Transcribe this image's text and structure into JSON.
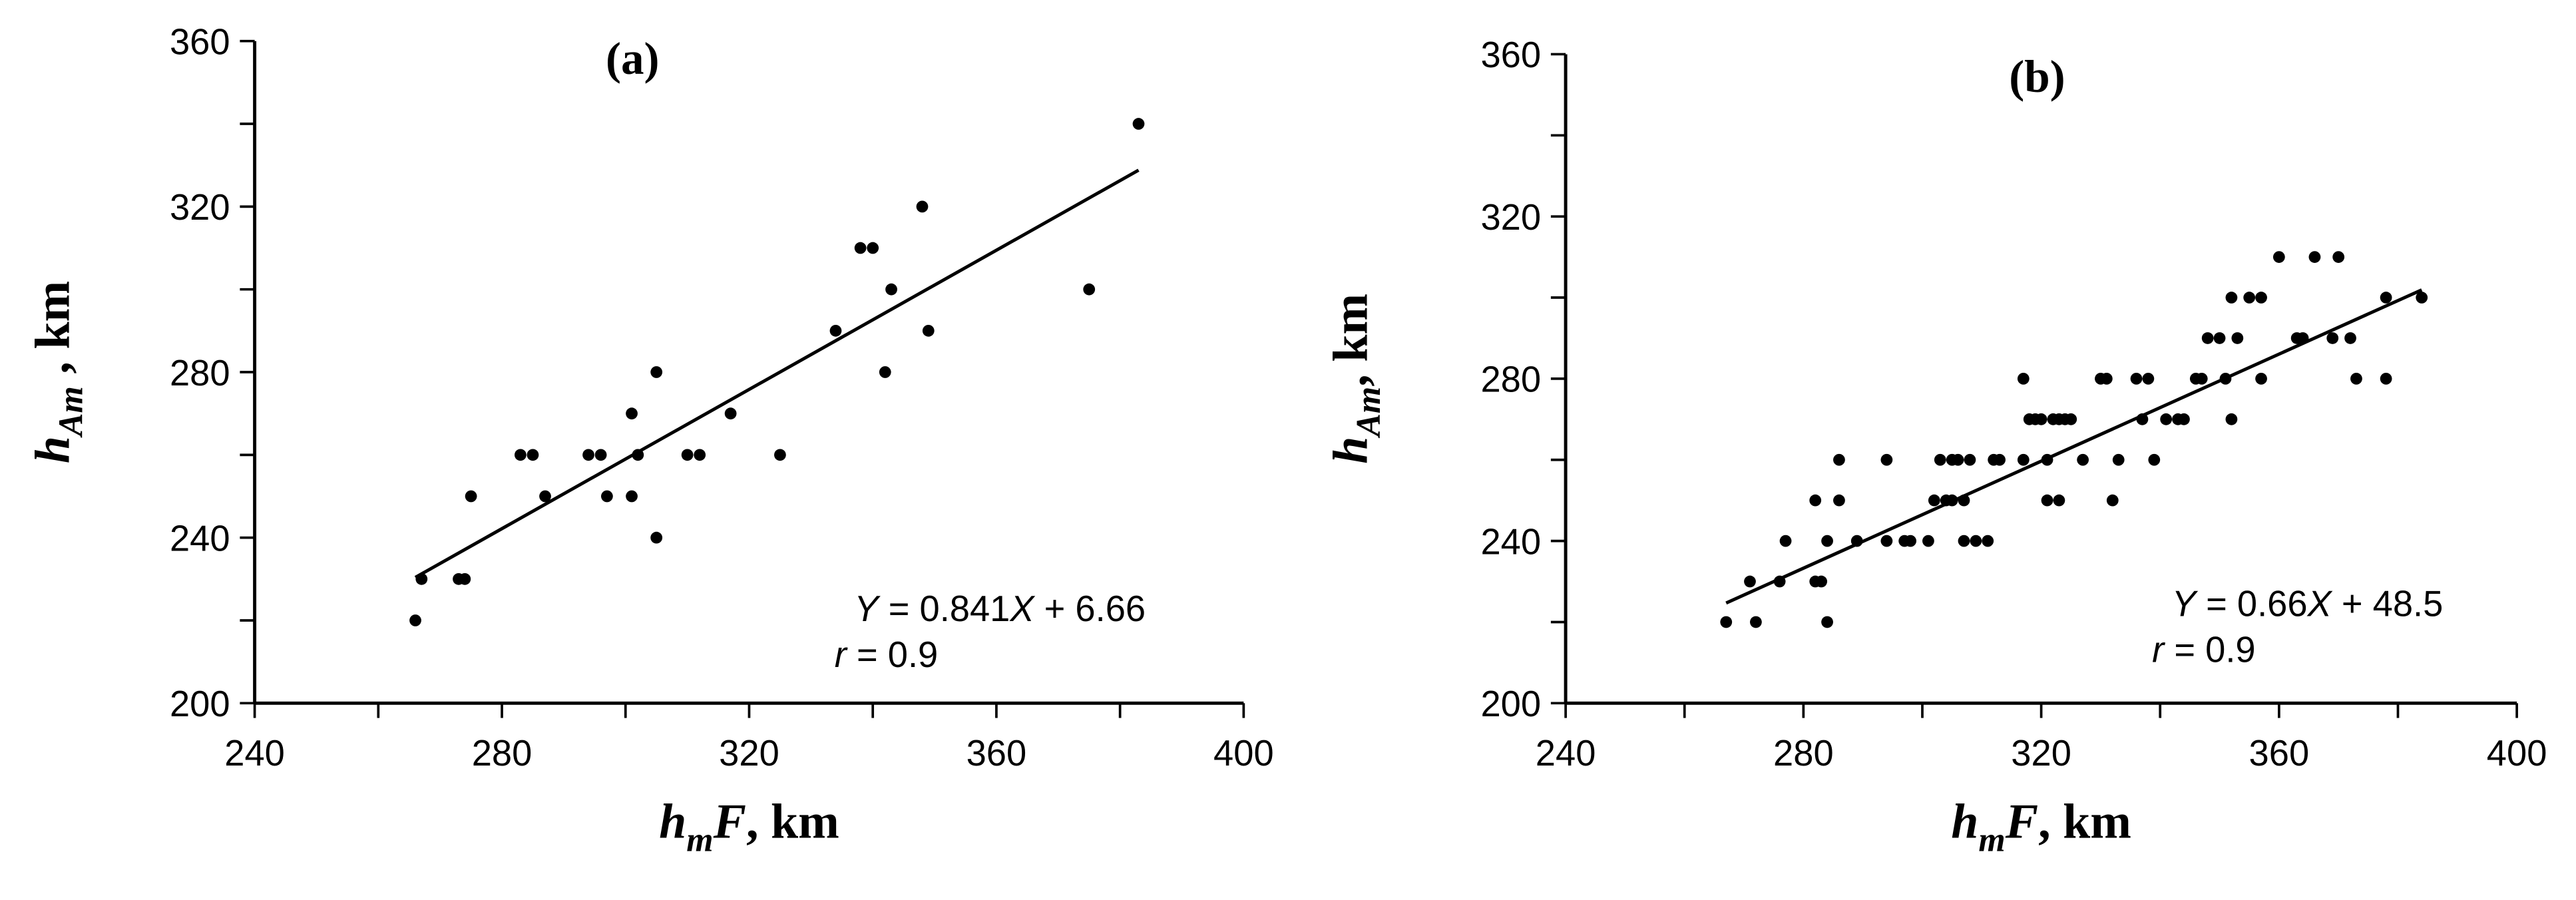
{
  "chart_data": [
    {
      "type": "scatter",
      "title": "(a)",
      "color": "#000000",
      "xlabel": [
        "h",
        "m",
        "F",
        ", km"
      ],
      "ylabel": [
        "h",
        "Am",
        " , km"
      ],
      "equation": [
        "Y",
        " = 0.841",
        "X",
        " + 6.66"
      ],
      "correlation": [
        "r",
        " = 0.9"
      ],
      "x": [
        266,
        267,
        273,
        274,
        275,
        283,
        285,
        287,
        294,
        296,
        297,
        301,
        301,
        302,
        305,
        305,
        310,
        312,
        317,
        325,
        334,
        338,
        340,
        342,
        343,
        348,
        349,
        375,
        383
      ],
      "values": [
        220,
        230,
        230,
        230,
        250,
        260,
        260,
        250,
        260,
        260,
        250,
        250,
        270,
        260,
        280,
        240,
        260,
        260,
        270,
        260,
        290,
        310,
        310,
        280,
        300,
        320,
        290,
        300,
        340
      ],
      "trend_x": [
        266,
        383
      ],
      "trend_values": [
        230.4,
        328.8
      ],
      "xlim": [
        240,
        400
      ],
      "xticks": [
        240,
        280,
        320,
        360,
        400
      ],
      "xminorticks": [
        260,
        300,
        340,
        380
      ],
      "ylim": [
        200,
        360
      ],
      "yticks": [
        200,
        240,
        280,
        320,
        360
      ],
      "yminorticks": [
        220,
        260,
        300,
        340
      ]
    },
    {
      "type": "scatter",
      "title": "(b)",
      "color": "#000000",
      "xlabel": [
        "h",
        "m",
        "F",
        ", km"
      ],
      "ylabel": [
        "h",
        "Am",
        ", km"
      ],
      "equation": [
        "Y",
        " = 0.66",
        "X",
        " + 48.5"
      ],
      "correlation": [
        "r",
        " = 0.9"
      ],
      "x": [
        267,
        271,
        272,
        276,
        277,
        282,
        282,
        283,
        284,
        284,
        286,
        286,
        289,
        294,
        294,
        297,
        298,
        301,
        302,
        303,
        304,
        305,
        305,
        306,
        307,
        307,
        308,
        309,
        311,
        312,
        313,
        317,
        317,
        318,
        319,
        320,
        321,
        321,
        322,
        323,
        323,
        324,
        325,
        327,
        330,
        331,
        332,
        333,
        336,
        337,
        338,
        339,
        341,
        343,
        344,
        346,
        347,
        348,
        350,
        351,
        352,
        352,
        353,
        355,
        357,
        357,
        360,
        363,
        364,
        366,
        369,
        370,
        372,
        373,
        378,
        378,
        384
      ],
      "values": [
        220,
        230,
        220,
        230,
        240,
        250,
        230,
        230,
        240,
        220,
        260,
        250,
        240,
        260,
        240,
        240,
        240,
        240,
        250,
        260,
        250,
        260,
        250,
        260,
        240,
        250,
        260,
        240,
        240,
        260,
        260,
        280,
        260,
        270,
        270,
        270,
        260,
        250,
        270,
        270,
        250,
        270,
        270,
        260,
        280,
        280,
        250,
        260,
        280,
        270,
        280,
        260,
        270,
        270,
        270,
        280,
        280,
        290,
        290,
        280,
        300,
        270,
        290,
        300,
        300,
        280,
        310,
        290,
        290,
        310,
        290,
        310,
        290,
        280,
        300,
        280,
        300
      ],
      "trend_x": [
        267,
        384
      ],
      "trend_values": [
        224.7,
        301.9
      ],
      "xlim": [
        240,
        400
      ],
      "xticks": [
        240,
        280,
        320,
        360,
        400
      ],
      "xminorticks": [
        260,
        300,
        340,
        380
      ],
      "ylim": [
        200,
        360
      ],
      "yticks": [
        200,
        240,
        280,
        320,
        360
      ],
      "yminorticks": [
        220,
        260,
        300,
        340
      ]
    }
  ]
}
